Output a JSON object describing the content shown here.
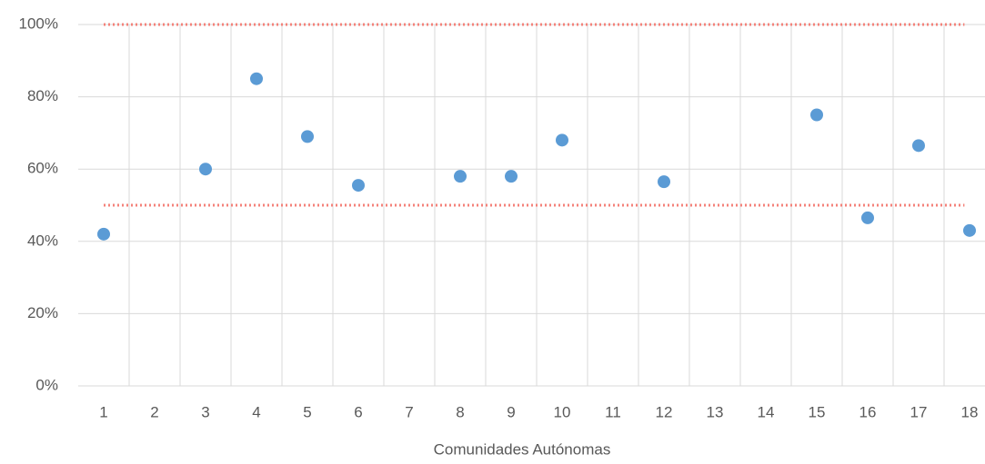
{
  "chart_data": {
    "type": "scatter",
    "x_label": "Comunidades Autónomas",
    "categories": [
      "1",
      "2",
      "3",
      "4",
      "5",
      "6",
      "7",
      "8",
      "9",
      "10",
      "11",
      "12",
      "13",
      "14",
      "15",
      "16",
      "17",
      "18"
    ],
    "values": [
      42,
      null,
      60,
      85,
      69,
      55.5,
      null,
      58,
      58,
      68,
      null,
      56.5,
      null,
      null,
      75,
      46.5,
      66.5,
      43
    ],
    "color": "#5b9bd5",
    "reference_lines": {
      "values": [
        50,
        100
      ],
      "color": "#f4827a"
    },
    "ylim": [
      0,
      100
    ],
    "yticks": [
      {
        "value": 0,
        "label": "0%"
      },
      {
        "value": 20,
        "label": "20%"
      },
      {
        "value": 40,
        "label": "40%"
      },
      {
        "value": 60,
        "label": "60%"
      },
      {
        "value": 80,
        "label": "80%"
      },
      {
        "value": 100,
        "label": "100%"
      }
    ],
    "grid": true
  }
}
